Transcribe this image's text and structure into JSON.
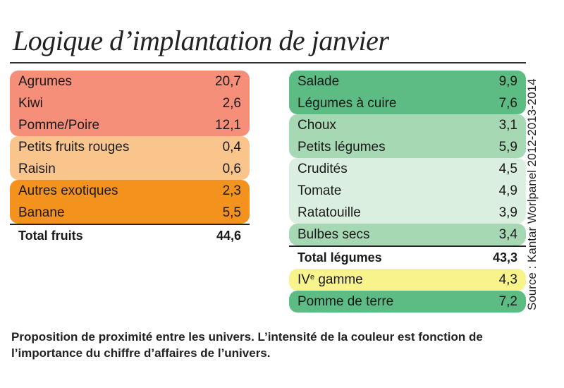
{
  "title": "Logique d’implantation de janvier",
  "source": "Source : Kantar Worlpanel 2012-2013-2014",
  "fruits": {
    "groups": [
      {
        "color": "#f58f7a",
        "rows": [
          {
            "label": "Agrumes",
            "value": "20,7"
          },
          {
            "label": "Kiwi",
            "value": "2,6"
          },
          {
            "label": "Pomme/Poire",
            "value": "12,1"
          }
        ]
      },
      {
        "color": "#f9c58d",
        "rows": [
          {
            "label": "Petits fruits rouges",
            "value": "0,4"
          },
          {
            "label": "Raisin",
            "value": "0,6"
          }
        ]
      },
      {
        "color": "#f4921e",
        "rows": [
          {
            "label": "Autres exotiques",
            "value": "2,3"
          },
          {
            "label": "Banane",
            "value": "5,5"
          }
        ]
      }
    ],
    "total_label": "Total fruits",
    "total_value": "44,6"
  },
  "legumes": {
    "groups": [
      {
        "color": "#5dbb84",
        "rows": [
          {
            "label": "Salade",
            "value": "9,9"
          },
          {
            "label": "Légumes à cuire",
            "value": "7,6"
          }
        ]
      },
      {
        "color": "#a6d8b4",
        "rows": [
          {
            "label": "Choux",
            "value": "3,1"
          },
          {
            "label": "Petits légumes",
            "value": "5,9"
          }
        ]
      },
      {
        "color": "#daefdf",
        "rows": [
          {
            "label": "Crudités",
            "value": "4,5"
          },
          {
            "label": "Tomate",
            "value": "4,9"
          },
          {
            "label": "Ratatouille",
            "value": "3,9"
          }
        ]
      },
      {
        "color": "#a6d8b4",
        "rows": [
          {
            "label": "Bulbes secs",
            "value": "3,4"
          }
        ]
      }
    ],
    "total_label": "Total légumes",
    "total_value": "43,3",
    "after": [
      {
        "color": "#f8f38b",
        "label_main": "IV",
        "label_sup": "e",
        "label_rest": " gamme",
        "value": "4,3"
      },
      {
        "color": "#5dbb84",
        "label": "Pomme de terre",
        "value": "7,2"
      }
    ]
  },
  "caption": "Proposition de proximité entre les univers. L’intensité de la couleur est fonction de l’importance du chiffre d’affaires de l’univers."
}
